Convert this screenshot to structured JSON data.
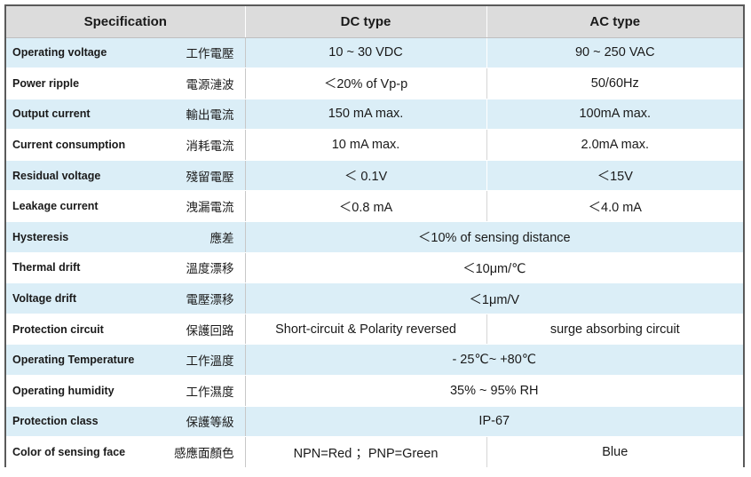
{
  "headers": {
    "specification": "Specification",
    "dc": "DC type",
    "ac": "AC type"
  },
  "rows": [
    {
      "en": "Operating voltage",
      "zh": "工作電壓",
      "dc": "10 ~ 30 VDC",
      "ac": "90 ~ 250 VAC"
    },
    {
      "en": "Power ripple",
      "zh": "電源漣波",
      "dc": "＜20% of Vp-p",
      "ac": "50/60Hz"
    },
    {
      "en": "Output current",
      "zh": "輸出電流",
      "dc": "150 mA max.",
      "ac": "100mA max."
    },
    {
      "en": "Current consumption",
      "zh": "消耗電流",
      "dc": "10 mA max.",
      "ac": "2.0mA max."
    },
    {
      "en": "Residual voltage",
      "zh": "殘留電壓",
      "dc": "＜ 0.1V",
      "ac": "＜15V"
    },
    {
      "en": "Leakage current",
      "zh": "洩漏電流",
      "dc": "＜0.8 mA",
      "ac": "＜4.0 mA"
    },
    {
      "en": "Hysteresis",
      "zh": "應差",
      "both": "＜10% of sensing distance"
    },
    {
      "en": "Thermal drift",
      "zh": "溫度漂移",
      "both": "＜10μm/℃"
    },
    {
      "en": "Voltage drift",
      "zh": "電壓漂移",
      "both": "＜1μm/V"
    },
    {
      "en": "Protection circuit",
      "zh": "保護回路",
      "dc": "Short-circuit & Polarity reversed",
      "ac": "surge absorbing circuit"
    },
    {
      "en": "Operating Temperature",
      "zh": "工作溫度",
      "both": "- 25℃~ +80℃"
    },
    {
      "en": "Operating humidity",
      "zh": "工作濕度",
      "both": "35% ~ 95% RH"
    },
    {
      "en": "Protection class",
      "zh": "保護等級",
      "both": "IP-67"
    },
    {
      "en": "Color of sensing face",
      "zh": "感應面顏色",
      "dc": "NPN=Red ；PNP=Green",
      "ac": "Blue"
    }
  ]
}
